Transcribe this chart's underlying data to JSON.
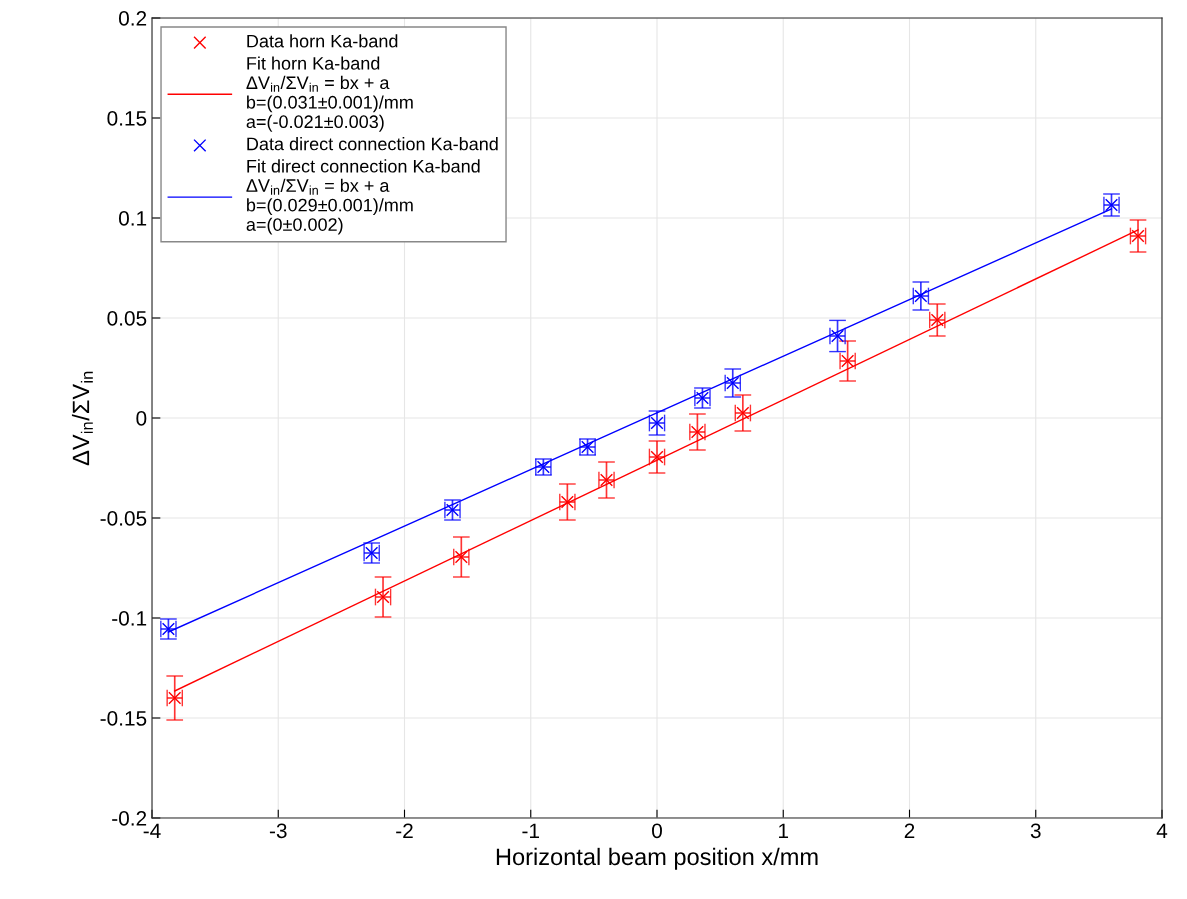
{
  "chart_data": {
    "type": "scatter",
    "xlabel": "Horizontal beam position x/mm",
    "ylabel": "ΔV$_{in}$/ΣV$_{in}$",
    "xlim": [
      -4,
      4
    ],
    "xticks": [
      -4,
      -3,
      -2,
      -1,
      0,
      1,
      2,
      3,
      4
    ],
    "ylim": [
      -0.2,
      0.2
    ],
    "yticks": [
      -0.2,
      -0.15,
      -0.1,
      -0.05,
      0,
      0.05,
      0.1,
      0.15,
      0.2
    ],
    "grid": true,
    "legend": "top left",
    "series": [
      {
        "name": "Data horn Ka-band",
        "marker": "cross",
        "color": "#ff0000",
        "x": [
          -3.82,
          -2.17,
          -1.55,
          -0.71,
          -0.4,
          0,
          0.32,
          0.68,
          1.51,
          2.22,
          3.81
        ],
        "values": [
          -0.14,
          -0.0895,
          -0.0695,
          -0.042,
          -0.031,
          -0.0195,
          -0.007,
          0.0025,
          0.0285,
          0.049,
          0.091
        ],
        "errors": [
          0.011,
          0.01,
          0.01,
          0.009,
          0.009,
          0.008,
          0.009,
          0.009,
          0.01,
          0.008,
          0.008
        ],
        "xerrors": [
          0.06,
          0.06,
          0.06,
          0.06,
          0.06,
          0.06,
          0.06,
          0.06,
          0.06,
          0.06,
          0.06
        ]
      },
      {
        "name": "Fit horn Ka-band\nΔV$_{in}$/ΣV$_{in}$ = bx + a\nb=(0.031±0.001)/mm\na=(-0.021±0.003)",
        "type": "line",
        "color": "#ff0000",
        "x": [
          -3.82,
          3.81
        ],
        "values": [
          -0.1365,
          0.094
        ]
      },
      {
        "name": "Data direct connection Ka-band",
        "marker": "cross",
        "color": "#0000ff",
        "x": [
          -3.87,
          -2.26,
          -1.62,
          -0.9,
          -0.55,
          0,
          0.36,
          0.6,
          1.43,
          2.09,
          3.6
        ],
        "values": [
          -0.1055,
          -0.0675,
          -0.046,
          -0.0245,
          -0.0145,
          -0.0025,
          0.01,
          0.0175,
          0.041,
          0.061,
          0.1065
        ],
        "errors": [
          0.005,
          0.005,
          0.005,
          0.004,
          0.004,
          0.006,
          0.005,
          0.007,
          0.0078,
          0.007,
          0.0055
        ],
        "xerrors": [
          0.06,
          0.06,
          0.06,
          0.06,
          0.06,
          0.06,
          0.06,
          0.06,
          0.06,
          0.06,
          0.06
        ]
      },
      {
        "name": "Fit direct connection Ka-band\nΔV$_{in}$/ΣV$_{in}$ = bx + a\nb=(0.029±0.001)/mm\na=(0±0.002)",
        "type": "line",
        "color": "#0000ff",
        "x": [
          -3.87,
          3.6
        ],
        "values": [
          -0.107,
          0.1045
        ]
      }
    ]
  }
}
